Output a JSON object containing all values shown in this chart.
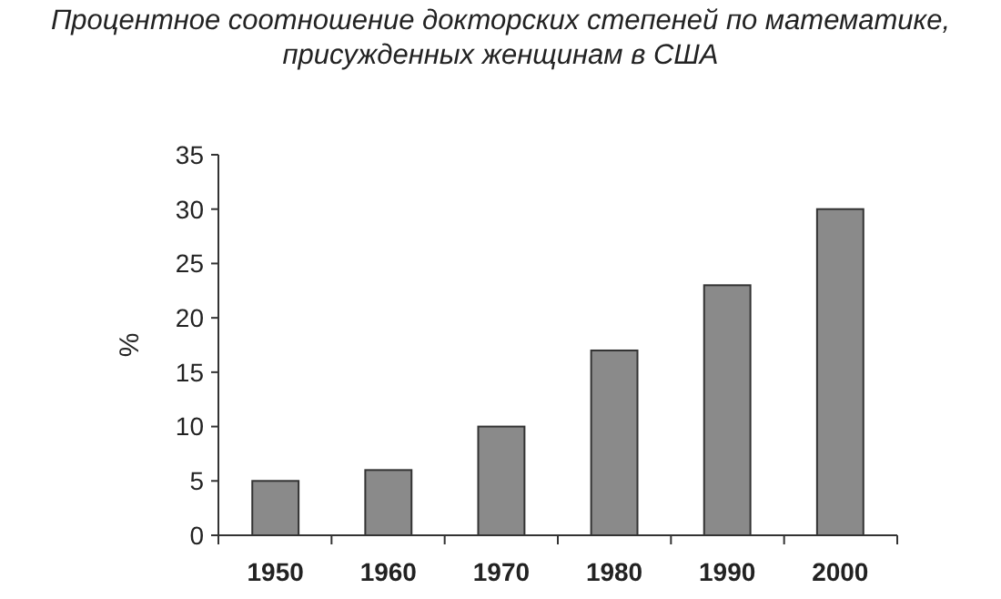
{
  "chart_data": {
    "type": "bar",
    "title": "Процентное соотношение докторских степеней по математике,\nприсужденных женщинам в США",
    "ylabel": "%",
    "categories": [
      "1950",
      "1960",
      "1970",
      "1980",
      "1990",
      "2000"
    ],
    "values": [
      5,
      6,
      10,
      17,
      23,
      30
    ],
    "color": "#8a8a8a",
    "ylim": [
      0,
      35
    ],
    "yticks": [
      0,
      5,
      10,
      15,
      20,
      25,
      30,
      35
    ]
  }
}
